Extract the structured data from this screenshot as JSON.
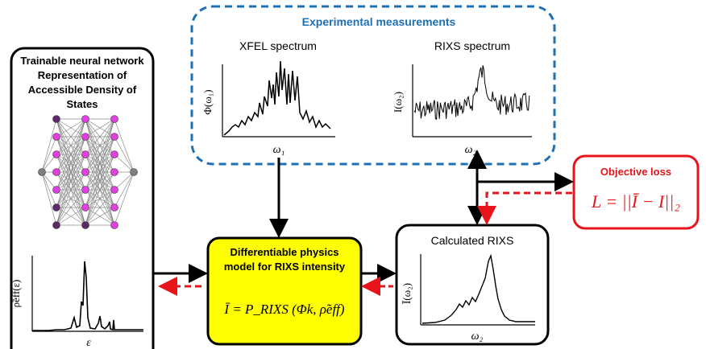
{
  "nn_box": {
    "title_lines": [
      "Trainable neural network",
      "Representation of",
      "Accessible Density of",
      "States"
    ],
    "plot_ylabel": "ρ̃eff(ε)",
    "plot_xlabel": "ε"
  },
  "experimental": {
    "title": "Experimental measurements",
    "xfel": {
      "title": "XFEL spectrum",
      "ylabel": "Φ(ω₁)",
      "xlabel": "ω₁"
    },
    "rixs": {
      "title": "RIXS spectrum",
      "ylabel": "I(ω₂)",
      "xlabel": "ω₂"
    }
  },
  "physics_box": {
    "title_lines": [
      "Differentiable physics",
      "model for RIXS intensity"
    ],
    "formula": "Ī = P_RIXS (Φk, ρ̃eff)"
  },
  "calculated": {
    "title": "Calculated RIXS",
    "ylabel": "Ī(ω₂)",
    "xlabel": "ω₂"
  },
  "objective": {
    "title": "Objective loss",
    "formula": "L = ||Ī − I||₂"
  },
  "colors": {
    "experimental_border": "#1f6fb5",
    "objective_red": "#e8141b",
    "physics_fill": "#ffff00",
    "node_magenta": "#e040e0",
    "node_dark": "#5a2a6a",
    "node_gray": "#7f7f7f"
  }
}
